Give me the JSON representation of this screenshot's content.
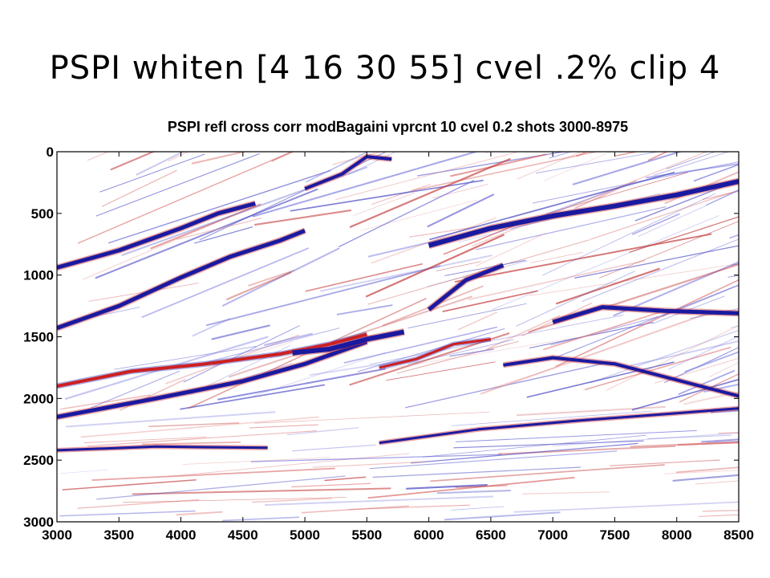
{
  "slide": {
    "title": "PSPI whiten [4 16 30 55] cvel .2% clip 4"
  },
  "chart_data": {
    "type": "heatmap",
    "title": "PSPI refl cross corr modBagaini vprcnt 10 cvel 0.2 shots 3000-8975",
    "xlabel": "",
    "ylabel": "",
    "xlim": [
      3000,
      8500
    ],
    "ylim": [
      3000,
      0
    ],
    "x_ticks": [
      "3000",
      "3500",
      "4000",
      "4500",
      "5000",
      "5500",
      "6000",
      "6500",
      "7000",
      "7500",
      "8000",
      "8500"
    ],
    "y_ticks": [
      "0",
      "500",
      "1000",
      "1500",
      "2000",
      "2500",
      "3000"
    ],
    "colormap": {
      "negative": "#0000cc",
      "zero": "#ffffff",
      "positive": "#cc0000"
    },
    "reflectors": [
      {
        "x": [
          3000,
          3500,
          4000,
          4300,
          4600
        ],
        "y": [
          940,
          800,
          620,
          500,
          420
        ],
        "color": "#1a1aa0",
        "w": 5
      },
      {
        "x": [
          3000,
          3500,
          4000,
          4400,
          4800,
          5000
        ],
        "y": [
          1430,
          1250,
          1020,
          850,
          720,
          640
        ],
        "color": "#1a1aa0",
        "w": 5
      },
      {
        "x": [
          3000,
          3600,
          4200,
          4800,
          5200,
          5500
        ],
        "y": [
          1900,
          1780,
          1720,
          1640,
          1560,
          1480
        ],
        "color": "#cc2020",
        "w": 4
      },
      {
        "x": [
          3000,
          3800,
          4500,
          5000,
          5500
        ],
        "y": [
          2150,
          2000,
          1860,
          1720,
          1540
        ],
        "color": "#1a1aa0",
        "w": 5
      },
      {
        "x": [
          4900,
          5200,
          5500,
          5800
        ],
        "y": [
          1630,
          1600,
          1520,
          1460
        ],
        "color": "#1a1aa0",
        "w": 6
      },
      {
        "x": [
          6000,
          6500,
          7000,
          7500,
          8000,
          8500
        ],
        "y": [
          760,
          620,
          520,
          440,
          350,
          240
        ],
        "color": "#1a1aa0",
        "w": 6
      },
      {
        "x": [
          6000,
          6300,
          6600
        ],
        "y": [
          1280,
          1040,
          920
        ],
        "color": "#1a1aa0",
        "w": 5
      },
      {
        "x": [
          7000,
          7400,
          7900,
          8500
        ],
        "y": [
          1380,
          1260,
          1290,
          1310
        ],
        "color": "#1a1aa0",
        "w": 5
      },
      {
        "x": [
          6600,
          7000,
          7500,
          8000,
          8500
        ],
        "y": [
          1730,
          1670,
          1720,
          1850,
          1980
        ],
        "color": "#1a1aa0",
        "w": 4
      },
      {
        "x": [
          5600,
          5900,
          6200,
          6500
        ],
        "y": [
          1750,
          1680,
          1560,
          1520
        ],
        "color": "#cc2020",
        "w": 3
      },
      {
        "x": [
          3000,
          3800,
          4700
        ],
        "y": [
          2420,
          2390,
          2400
        ],
        "color": "#1a1aa0",
        "w": 3
      },
      {
        "x": [
          5600,
          6400,
          7200,
          8000,
          8500
        ],
        "y": [
          2360,
          2250,
          2180,
          2120,
          2080
        ],
        "color": "#1a1aa0",
        "w": 3
      },
      {
        "x": [
          5000,
          5300,
          5500,
          5700
        ],
        "y": [
          300,
          180,
          40,
          60
        ],
        "color": "#1a1aa0",
        "w": 4
      }
    ]
  }
}
